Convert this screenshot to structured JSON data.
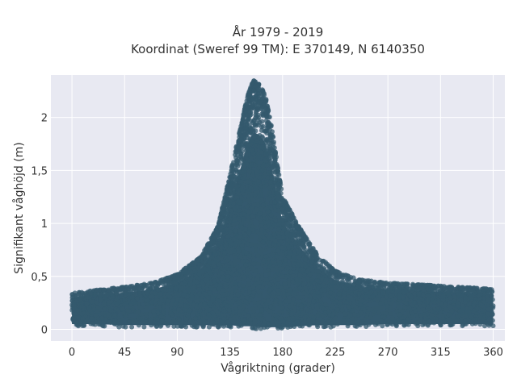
{
  "chart_data": {
    "type": "scatter",
    "title_line1": "År 1979 - 2019",
    "title_line2": "Koordinat (Sweref 99 TM): E 370149, N 6140350",
    "xlabel": "Vågriktning (grader)",
    "ylabel": "Signifikant våghöjd (m)",
    "xlim": [
      -18,
      370
    ],
    "ylim": [
      -0.11,
      2.4
    ],
    "x_ticks": [
      0,
      45,
      90,
      135,
      180,
      225,
      270,
      315,
      360
    ],
    "y_ticks": [
      0,
      0.5,
      1,
      1.5,
      2
    ],
    "y_tick_labels": [
      "0",
      "0,5",
      "1",
      "1,5",
      "2"
    ],
    "grid": true,
    "marker_color": "#34596e",
    "background_color": "#e8e9f2",
    "envelope": {
      "x": [
        0,
        20,
        45,
        70,
        90,
        110,
        125,
        135,
        145,
        150,
        155,
        160,
        165,
        170,
        180,
        195,
        210,
        225,
        245,
        270,
        300,
        330,
        360
      ],
      "y_max": [
        0.34,
        0.37,
        0.4,
        0.44,
        0.52,
        0.68,
        0.98,
        1.45,
        1.95,
        2.2,
        2.35,
        2.31,
        2.22,
        1.95,
        1.25,
        0.95,
        0.7,
        0.55,
        0.47,
        0.44,
        0.42,
        0.4,
        0.38
      ],
      "y_min": [
        0.03,
        0.03,
        0.02,
        0.02,
        0.02,
        0.02,
        0.02,
        0.02,
        0.01,
        0.01,
        0.01,
        0.0,
        0.0,
        0.0,
        0.0,
        0.01,
        0.02,
        0.02,
        0.02,
        0.03,
        0.03,
        0.03,
        0.03
      ]
    }
  }
}
